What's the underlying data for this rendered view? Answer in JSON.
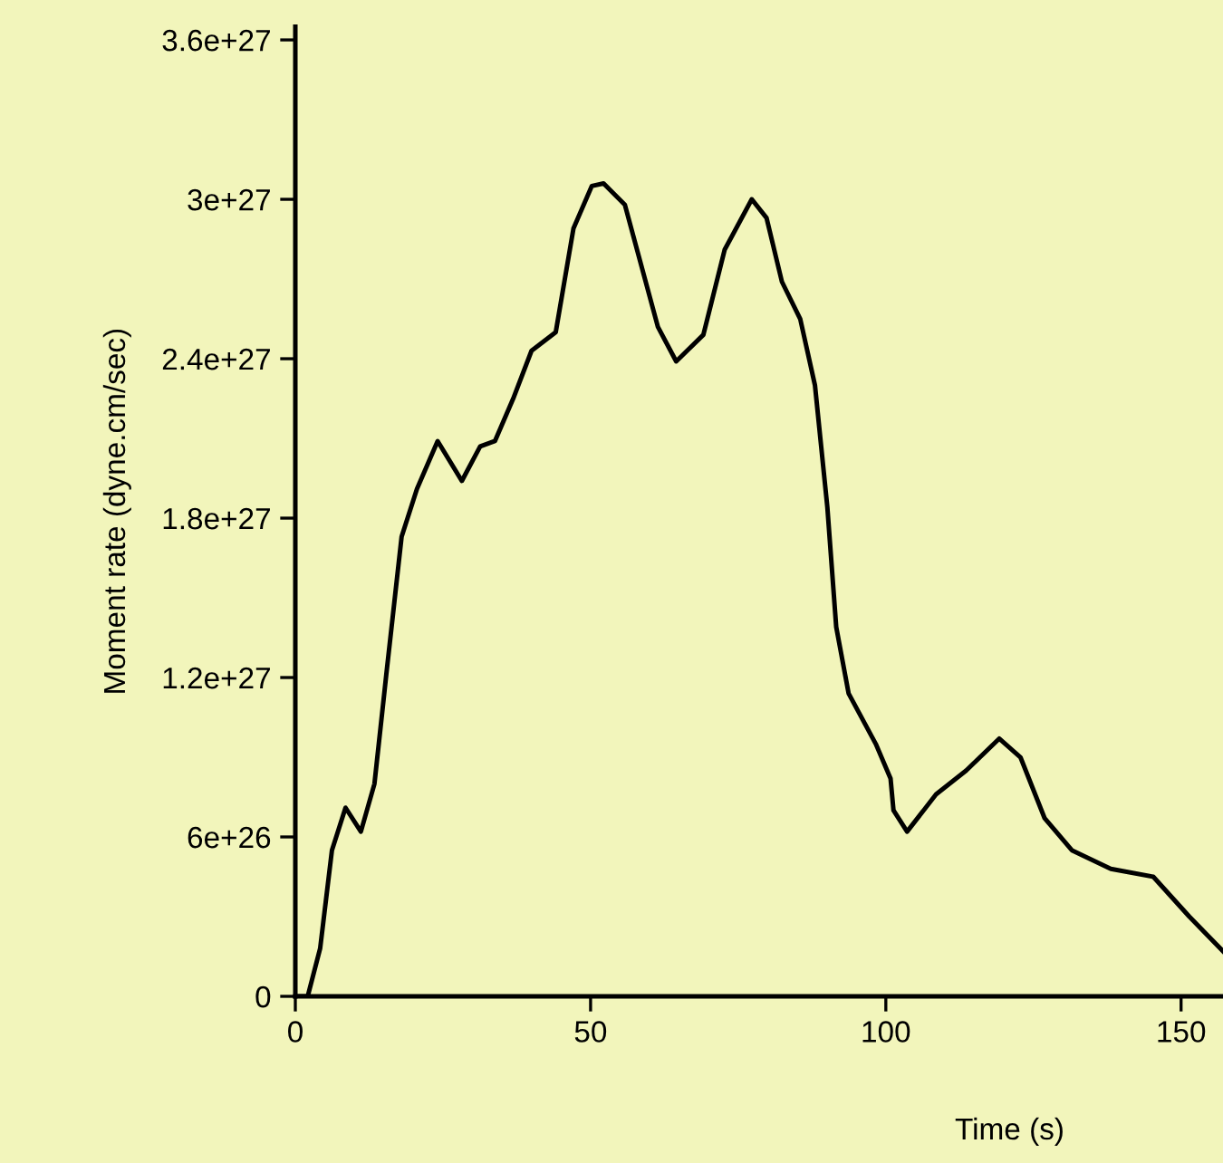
{
  "chart_data": {
    "type": "line",
    "xlabel": "Time (s)",
    "ylabel": "Moment rate (dyne.cm/sec)",
    "x": [
      0,
      2.1,
      4.2,
      6.2,
      8.5,
      11.1,
      13.4,
      15.4,
      18.0,
      20.6,
      24.1,
      28.2,
      31.3,
      33.8,
      36.9,
      40.0,
      44.1,
      47.1,
      50.2,
      52.2,
      55.8,
      61.4,
      64.5,
      69.1,
      72.7,
      77.3,
      79.8,
      82.4,
      85.5,
      88.0,
      90.1,
      91.6,
      93.7,
      98.3,
      100.8,
      101.3,
      103.6,
      108.5,
      113.6,
      119.2,
      122.8,
      126.9,
      131.5,
      138.1,
      145.3,
      151.4,
      157.1
    ],
    "series": [
      {
        "color": "#000000",
        "values": [
          0,
          0,
          1.8e+26,
          5.5e+26,
          7.1e+26,
          6.2e+26,
          8e+26,
          1.21e+27,
          1.73e+27,
          1.91e+27,
          2.09e+27,
          1.94e+27,
          2.07e+27,
          2.09e+27,
          2.25e+27,
          2.43e+27,
          2.5e+27,
          2.89e+27,
          3.05e+27,
          3.06e+27,
          2.98e+27,
          2.52e+27,
          2.39e+27,
          2.49e+27,
          2.81e+27,
          3e+27,
          2.93e+27,
          2.69e+27,
          2.55e+27,
          2.3e+27,
          1.84e+27,
          1.39e+27,
          1.14e+27,
          9.5e+26,
          8.2e+26,
          7e+26,
          6.2e+26,
          7.6e+26,
          8.5e+26,
          9.7e+26,
          9e+26,
          6.7e+26,
          5.5e+26,
          4.8e+26,
          4.5e+26,
          3e+26,
          1.7e+26
        ]
      }
    ],
    "xlim": [
      0,
      157.1
    ],
    "xticks": [
      0,
      50,
      100,
      150
    ],
    "ylim": [
      0,
      3.65e+27
    ],
    "yticks": [
      {
        "value": 0,
        "label": "0"
      },
      {
        "value": 6e+26,
        "label": "6e+26"
      },
      {
        "value": 1.2e+27,
        "label": "1.2e+27"
      },
      {
        "value": 1.8e+27,
        "label": "1.8e+27"
      },
      {
        "value": 2.4e+27,
        "label": "2.4e+27"
      },
      {
        "value": 3e+27,
        "label": "3e+27"
      },
      {
        "value": 3.6e+27,
        "label": "3.6e+27"
      }
    ],
    "grid": false,
    "legend": false,
    "marker": "none",
    "line_style": "solid"
  }
}
